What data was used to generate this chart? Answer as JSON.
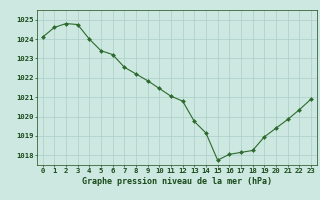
{
  "x": [
    0,
    1,
    2,
    3,
    4,
    5,
    6,
    7,
    8,
    9,
    10,
    11,
    12,
    13,
    14,
    15,
    16,
    17,
    18,
    19,
    20,
    21,
    22,
    23
  ],
  "y": [
    1024.1,
    1024.6,
    1024.8,
    1024.75,
    1024.0,
    1023.4,
    1023.2,
    1022.55,
    1022.2,
    1021.85,
    1021.45,
    1021.05,
    1020.8,
    1019.75,
    1019.15,
    1017.75,
    1018.05,
    1018.15,
    1018.25,
    1018.95,
    1019.4,
    1019.85,
    1020.35,
    1020.9
  ],
  "line_color": "#2d6a2d",
  "marker_color": "#2d6a2d",
  "bg_color": "#cce8e0",
  "grid_color": "#aacfc8",
  "xlabel": "Graphe pression niveau de la mer (hPa)",
  "xlabel_color": "#1a4a1a",
  "tick_color": "#1a4a1a",
  "ylim_min": 1017.5,
  "ylim_max": 1025.5,
  "yticks": [
    1018,
    1019,
    1020,
    1021,
    1022,
    1023,
    1024,
    1025
  ],
  "xticks": [
    0,
    1,
    2,
    3,
    4,
    5,
    6,
    7,
    8,
    9,
    10,
    11,
    12,
    13,
    14,
    15,
    16,
    17,
    18,
    19,
    20,
    21,
    22,
    23
  ],
  "xlim_min": -0.5,
  "xlim_max": 23.5
}
